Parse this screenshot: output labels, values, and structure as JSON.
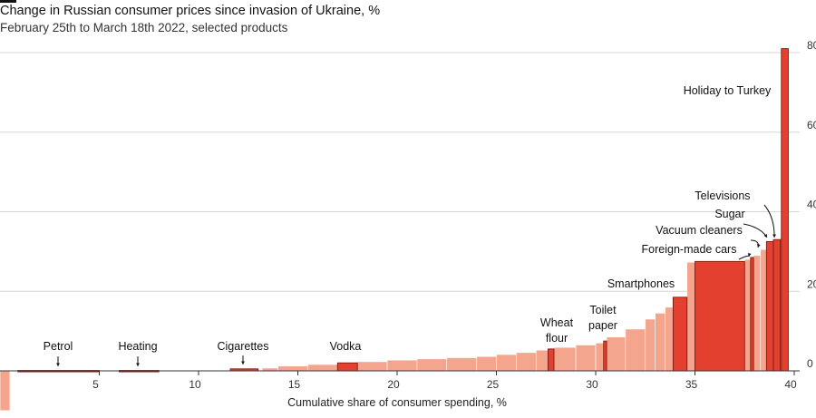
{
  "chart_data": {
    "type": "bar",
    "title": "Change in Russian consumer prices since invasion of Ukraine, %",
    "subtitle": "February 25th to March 18th 2022, selected products",
    "xlabel": "Cumulative share of consumer spending, %",
    "ylabel": "",
    "xlim": [
      0,
      40
    ],
    "ylim": [
      0,
      80
    ],
    "x_ticks": [
      5,
      10,
      15,
      20,
      25,
      30,
      35,
      40
    ],
    "y_ticks": [
      0,
      20,
      40,
      60,
      80
    ],
    "grid": "horizontal",
    "colors": {
      "other": "#f4a58d",
      "highlight": "#e3402f",
      "grid": "#d6d6d6",
      "zero_line": "#333333"
    },
    "annotations": [
      {
        "label": "Petrol",
        "x": 3.0
      },
      {
        "label": "Heating",
        "x": 7.0
      },
      {
        "label": "Cigarettes",
        "x": 12.0
      },
      {
        "label": "Vodka",
        "x": 17.5
      },
      {
        "label": "Wheat flour",
        "x": 27.5
      },
      {
        "label": "Toilet paper",
        "x": 30.3
      },
      {
        "label": "Smartphones",
        "x": 33.5
      },
      {
        "label": "Foreign-made cars",
        "x": 36.5
      },
      {
        "label": "Vacuum cleaners",
        "x": 37.9
      },
      {
        "label": "Sugar",
        "x": 38.8
      },
      {
        "label": "Televisions",
        "x": 39.2
      },
      {
        "label": "Holiday to Turkey",
        "x": 39.6
      }
    ],
    "series": [
      {
        "highlighted": [
          {
            "label": "Petrol",
            "x0": 0.9,
            "x1": 5.0,
            "value": 0.1
          },
          {
            "label": "Heating",
            "x0": 6.0,
            "x1": 8.0,
            "value": 0.1
          },
          {
            "label": "Cigarettes",
            "x0": 11.6,
            "x1": 13.0,
            "value": 0.5
          },
          {
            "label": "Vodka",
            "x0": 17.0,
            "x1": 18.0,
            "value": 2.0
          },
          {
            "label": "Wheat flour",
            "x0": 27.6,
            "x1": 27.9,
            "value": 5.5
          },
          {
            "label": "Toilet paper",
            "x0": 30.4,
            "x1": 30.55,
            "value": 7.5
          },
          {
            "label": "Smartphones",
            "x0": 33.9,
            "x1": 34.6,
            "value": 18.5
          },
          {
            "label": "Foreign-made cars",
            "x0": 35.0,
            "x1": 37.5,
            "value": 27.5
          },
          {
            "label": "Vacuum cleaners",
            "x0": 37.8,
            "x1": 37.95,
            "value": 28.5
          },
          {
            "label": "Sugar",
            "x0": 38.6,
            "x1": 38.95,
            "value": 32.5
          },
          {
            "label": "Televisions",
            "x0": 38.95,
            "x1": 39.3,
            "value": 33.0
          },
          {
            "label": "Holiday to Turkey",
            "x0": 39.35,
            "x1": 39.7,
            "value": 81.0
          }
        ]
      },
      {
        "other": [
          {
            "x0": 0.0,
            "x1": 0.5,
            "value": -10.0
          },
          {
            "x0": 13.2,
            "x1": 14.0,
            "value": 0.7
          },
          {
            "x0": 14.0,
            "x1": 15.5,
            "value": 1.2
          },
          {
            "x0": 15.5,
            "x1": 17.0,
            "value": 1.6
          },
          {
            "x0": 18.0,
            "x1": 19.5,
            "value": 2.3
          },
          {
            "x0": 19.5,
            "x1": 21.0,
            "value": 2.7
          },
          {
            "x0": 21.0,
            "x1": 22.5,
            "value": 3.0
          },
          {
            "x0": 22.5,
            "x1": 24.0,
            "value": 3.3
          },
          {
            "x0": 24.0,
            "x1": 25.0,
            "value": 3.6
          },
          {
            "x0": 25.0,
            "x1": 26.0,
            "value": 4.1
          },
          {
            "x0": 26.0,
            "x1": 27.0,
            "value": 4.6
          },
          {
            "x0": 27.0,
            "x1": 27.6,
            "value": 5.2
          },
          {
            "x0": 27.9,
            "x1": 29.0,
            "value": 5.9
          },
          {
            "x0": 29.0,
            "x1": 30.0,
            "value": 6.5
          },
          {
            "x0": 30.0,
            "x1": 30.4,
            "value": 7.0
          },
          {
            "x0": 30.55,
            "x1": 31.5,
            "value": 8.5
          },
          {
            "x0": 31.5,
            "x1": 32.5,
            "value": 10.5
          },
          {
            "x0": 32.5,
            "x1": 33.0,
            "value": 13.0
          },
          {
            "x0": 33.0,
            "x1": 33.5,
            "value": 14.5
          },
          {
            "x0": 33.5,
            "x1": 33.9,
            "value": 16.0
          },
          {
            "x0": 34.6,
            "x1": 35.0,
            "value": 27.3
          },
          {
            "x0": 37.5,
            "x1": 37.8,
            "value": 28.0
          },
          {
            "x0": 37.95,
            "x1": 38.3,
            "value": 29.0
          },
          {
            "x0": 38.3,
            "x1": 38.6,
            "value": 30.5
          },
          {
            "x0": 39.3,
            "x1": 39.35,
            "value": 33.5
          }
        ]
      }
    ]
  }
}
